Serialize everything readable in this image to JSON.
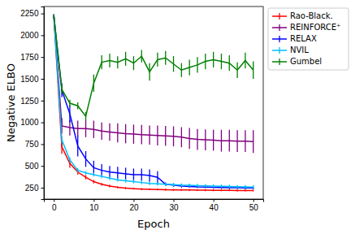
{
  "chart_data": {
    "type": "line",
    "x_label": "Epoch",
    "y_label": "Negative ELBO",
    "x": [
      0,
      2,
      4,
      6,
      8,
      10,
      12,
      14,
      16,
      18,
      20,
      22,
      24,
      26,
      28,
      30,
      32,
      34,
      36,
      38,
      40,
      42,
      44,
      46,
      48,
      50
    ],
    "xlim": [
      -2.5,
      52.5
    ],
    "xticks": [
      0,
      10,
      20,
      30,
      40,
      50
    ],
    "ylim": [
      120,
      2330
    ],
    "yticks": [
      250,
      500,
      750,
      1000,
      1250,
      1500,
      1750,
      2000,
      2250
    ],
    "grid": false,
    "legend": "right",
    "series": [
      {
        "name": "Rao-Black.",
        "color": "#ff0000",
        "marker": "none",
        "line_style": "solid",
        "values": [
          2220,
          720,
          530,
          430,
          370,
          320,
          290,
          270,
          255,
          245,
          240,
          235,
          232,
          230,
          228,
          226,
          225,
          224,
          223,
          222,
          221,
          220,
          220,
          219,
          219,
          218
        ],
        "errors": [
          20,
          80,
          50,
          30,
          25,
          20,
          15,
          15,
          12,
          12,
          10,
          10,
          10,
          10,
          10,
          10,
          10,
          10,
          10,
          10,
          10,
          10,
          10,
          10,
          10,
          10
        ]
      },
      {
        "name": "REINFORCE⁺",
        "color": "#800080",
        "marker": "none",
        "line_style": "solid",
        "values": [
          2220,
          960,
          940,
          930,
          930,
          920,
          900,
          890,
          880,
          870,
          865,
          860,
          855,
          850,
          845,
          840,
          830,
          815,
          805,
          800,
          795,
          790,
          790,
          785,
          785,
          780
        ],
        "errors": [
          20,
          90,
          90,
          90,
          100,
          100,
          100,
          100,
          110,
          110,
          110,
          110,
          110,
          115,
          115,
          115,
          115,
          120,
          120,
          120,
          120,
          125,
          125,
          125,
          125,
          130
        ]
      },
      {
        "name": "RELAX",
        "color": "#0000ff",
        "marker": "none",
        "line_style": "solid",
        "values": [
          2220,
          1370,
          1100,
          730,
          580,
          480,
          450,
          430,
          420,
          410,
          400,
          400,
          390,
          370,
          290,
          280,
          270,
          265,
          260,
          258,
          255,
          252,
          250,
          250,
          248,
          248
        ],
        "errors": [
          20,
          80,
          100,
          120,
          90,
          80,
          70,
          70,
          70,
          70,
          70,
          70,
          70,
          70,
          20,
          20,
          20,
          15,
          15,
          15,
          15,
          15,
          15,
          15,
          15,
          15
        ]
      },
      {
        "name": "NVIL",
        "color": "#00bfff",
        "marker": "none",
        "line_style": "solid",
        "values": [
          2220,
          800,
          570,
          450,
          420,
          400,
          380,
          360,
          340,
          330,
          320,
          310,
          300,
          295,
          290,
          285,
          280,
          278,
          275,
          272,
          270,
          268,
          265,
          262,
          260,
          258
        ],
        "errors": [
          20,
          40,
          30,
          25,
          20,
          20,
          20,
          20,
          20,
          20,
          20,
          20,
          20,
          20,
          20,
          20,
          20,
          20,
          20,
          20,
          20,
          20,
          20,
          20,
          20,
          20
        ]
      },
      {
        "name": "Gumbel",
        "color": "#008000",
        "marker": "none",
        "line_style": "solid",
        "values": [
          2220,
          1380,
          1220,
          1190,
          1070,
          1450,
          1690,
          1710,
          1690,
          1730,
          1680,
          1760,
          1580,
          1720,
          1740,
          1670,
          1600,
          1630,
          1660,
          1700,
          1720,
          1700,
          1680,
          1600,
          1710,
          1600
        ],
        "errors": [
          20,
          60,
          40,
          40,
          50,
          100,
          80,
          80,
          70,
          80,
          80,
          70,
          100,
          80,
          80,
          90,
          80,
          90,
          90,
          90,
          90,
          90,
          90,
          90,
          90,
          100
        ]
      }
    ]
  }
}
